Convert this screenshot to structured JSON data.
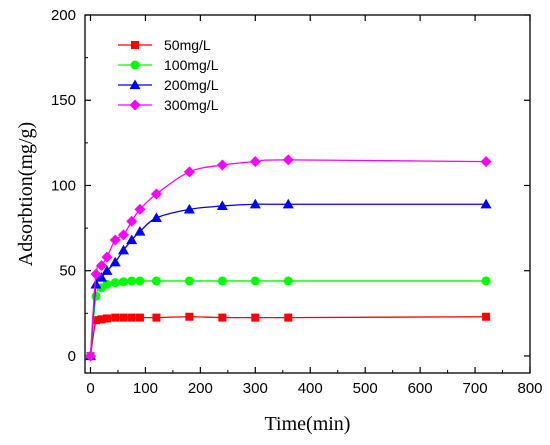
{
  "chart_data": {
    "type": "line",
    "title": "",
    "xlabel": "Time(min)",
    "ylabel": "Adsorbtion(mg/g)",
    "xlim": [
      -10,
      800
    ],
    "ylim": [
      -10,
      200
    ],
    "xticks": [
      0,
      100,
      200,
      300,
      400,
      500,
      600,
      700,
      800
    ],
    "yticks": [
      0,
      50,
      100,
      150,
      200
    ],
    "grid": false,
    "legend_position": "top-left",
    "x": [
      0,
      10,
      20,
      30,
      45,
      60,
      75,
      90,
      120,
      180,
      240,
      300,
      360,
      720
    ],
    "series": [
      {
        "name": "50mg/L",
        "color": "#ff0000",
        "marker": "square",
        "values": [
          0,
          21,
          21.5,
          22,
          22.5,
          22.5,
          22.5,
          22.5,
          22.5,
          23,
          22.5,
          22.5,
          22.5,
          23
        ]
      },
      {
        "name": "100mg/L",
        "color": "#00ff00",
        "marker": "circle",
        "values": [
          0,
          35,
          40,
          42,
          43,
          43.5,
          44,
          44,
          44,
          44,
          44,
          44,
          44,
          44
        ]
      },
      {
        "name": "200mg/L",
        "color": "#0000ff",
        "marker": "triangle",
        "values": [
          0,
          42,
          46,
          50,
          55,
          62,
          68,
          73,
          81,
          86,
          88,
          89,
          89,
          89
        ]
      },
      {
        "name": "300mg/L",
        "color": "#ff00ff",
        "marker": "diamond",
        "values": [
          0,
          48,
          53,
          58,
          68,
          71,
          79,
          86,
          95,
          108,
          112,
          114,
          115,
          114
        ]
      }
    ]
  }
}
